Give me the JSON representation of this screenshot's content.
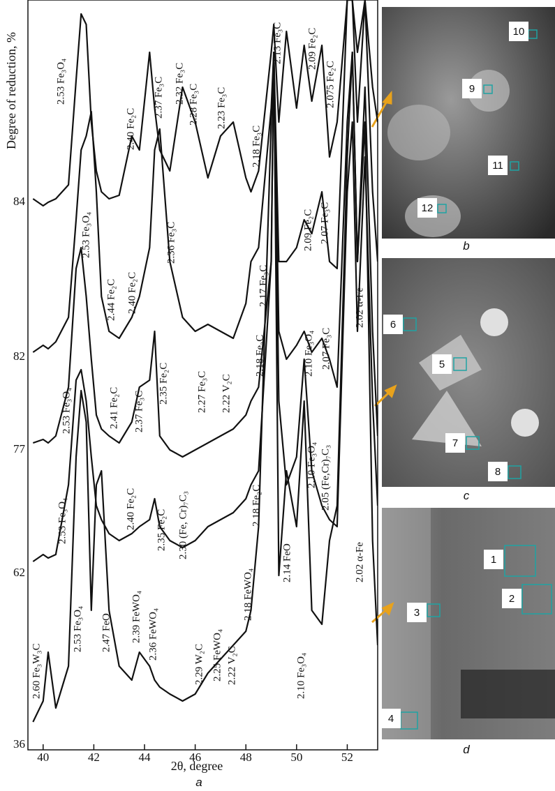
{
  "chart_data": {
    "type": "line",
    "y_label": "Degree of reduction, %",
    "x_label": "2θ, degree",
    "panel_letter": "a",
    "xlim": [
      39.4,
      53.2
    ],
    "xticks": [
      40,
      42,
      44,
      46,
      48,
      50,
      52
    ],
    "ylim": [
      0,
      1075
    ],
    "x": [
      39.6,
      40.0,
      40.2,
      40.5,
      41.0,
      41.3,
      41.5,
      41.7,
      41.9,
      42.1,
      42.3,
      42.6,
      43.0,
      43.5,
      43.8,
      44.2,
      44.4,
      44.6,
      45.0,
      45.5,
      46.0,
      46.5,
      47.0,
      47.5,
      48.0,
      48.2,
      48.5,
      49.0,
      49.1,
      49.3,
      49.6,
      50.0,
      50.3,
      50.6,
      51.0,
      51.3,
      51.6,
      52.0,
      52.2,
      52.4,
      52.7,
      53.0,
      53.2
    ],
    "series": [
      {
        "name": "84",
        "color": "#111111",
        "values": [
          790,
          780,
          785,
          790,
          810,
          960,
          1055,
          1040,
          900,
          830,
          800,
          790,
          795,
          880,
          860,
          1000,
          920,
          860,
          830,
          950,
          900,
          820,
          880,
          900,
          820,
          800,
          830,
          1000,
          1040,
          900,
          1030,
          920,
          1010,
          930,
          1010,
          850,
          900,
          1075,
          1075,
          1000,
          1075,
          950,
          900
        ]
      },
      {
        "name": "82",
        "color": "#111111",
        "values": [
          570,
          580,
          575,
          585,
          620,
          760,
          860,
          880,
          915,
          800,
          650,
          600,
          590,
          620,
          650,
          720,
          860,
          890,
          700,
          620,
          600,
          610,
          600,
          590,
          640,
          700,
          720,
          920,
          1000,
          700,
          700,
          720,
          760,
          740,
          800,
          700,
          690,
          1075,
          1075,
          900,
          1075,
          800,
          700
        ]
      },
      {
        "name": "77",
        "color": "#111111",
        "values": [
          440,
          445,
          440,
          450,
          520,
          690,
          720,
          650,
          560,
          480,
          460,
          450,
          440,
          470,
          520,
          530,
          600,
          450,
          430,
          420,
          430,
          440,
          450,
          460,
          480,
          500,
          520,
          700,
          1000,
          600,
          560,
          580,
          600,
          570,
          590,
          560,
          520,
          900,
          1000,
          700,
          950,
          600,
          450
        ]
      },
      {
        "name": "62",
        "color": "#111111",
        "values": [
          270,
          280,
          275,
          280,
          380,
          530,
          545,
          500,
          420,
          350,
          330,
          310,
          300,
          310,
          320,
          330,
          360,
          320,
          300,
          290,
          300,
          320,
          330,
          340,
          360,
          380,
          400,
          700,
          1000,
          500,
          380,
          420,
          560,
          400,
          350,
          330,
          320,
          800,
          900,
          600,
          850,
          500,
          350
        ]
      },
      {
        "name": "36",
        "color": "#111111",
        "values": [
          40,
          70,
          140,
          60,
          120,
          420,
          515,
          470,
          200,
          380,
          400,
          200,
          120,
          100,
          140,
          120,
          100,
          90,
          80,
          70,
          80,
          110,
          130,
          150,
          170,
          200,
          320,
          900,
          1000,
          250,
          400,
          320,
          500,
          200,
          180,
          300,
          350,
          850,
          1000,
          700,
          900,
          300,
          150
        ]
      }
    ],
    "annotations": [
      "2.53 Fe₃O₄",
      "2.40 Fe₂C",
      "2.37 Fe₃C",
      "2.32 Fe₃C",
      "2.28 Fe₃C",
      "2.23 Fe₃C",
      "2.18 Fe₃C",
      "2.13 Fe₃C",
      "2.09 Fe₂C",
      "2.075 Fe₂C",
      "2.53 Fe₃O₄",
      "2.44 Fe₂C",
      "2.40 Fe₂C",
      "2.36 Fe₃C",
      "2.17 Fe₃C",
      "2.09 Fe₂C",
      "2.07 Fe₃C",
      "2.02 α-Fe",
      "2.53 Fe₃O₄",
      "2.41 Fe₂C",
      "2.37 Fe₃C",
      "2.35 Fe₂C",
      "2.27 Fe₃C",
      "2.22 V₂C",
      "2.18 Fe₂C",
      "2.10 Fe₃O₄",
      "2.07 Fe₃C",
      "2.10 Fe₃O₄",
      "2.05 (Fe,Cr)₇C₃",
      "2.53 Fe₃O₄",
      "2.40 Fe₂C",
      "2.35 Fe₂C",
      "2.30 (Fe, Cr)₇C₃",
      "2.18 Fe₂C",
      "2.14 FeO",
      "2.02 α-Fe",
      "2.60 Fe₃W₃C",
      "2.53 Fe₃O₄",
      "2.47 FeO",
      "2.39 FeWO₄",
      "2.36 FeWO₄",
      "2.29 W₂C",
      "2.25 FeWO₄",
      "2.22 V₂C",
      "2.18 FeWO₄",
      "2.10 Fe₃O₄"
    ]
  },
  "panels": [
    {
      "letter": "b",
      "labels": [
        "10",
        "9",
        "11",
        "12"
      ]
    },
    {
      "letter": "c",
      "labels": [
        "6",
        "5",
        "7",
        "8"
      ]
    },
    {
      "letter": "d",
      "labels": [
        "1",
        "3",
        "2",
        "4"
      ]
    }
  ]
}
